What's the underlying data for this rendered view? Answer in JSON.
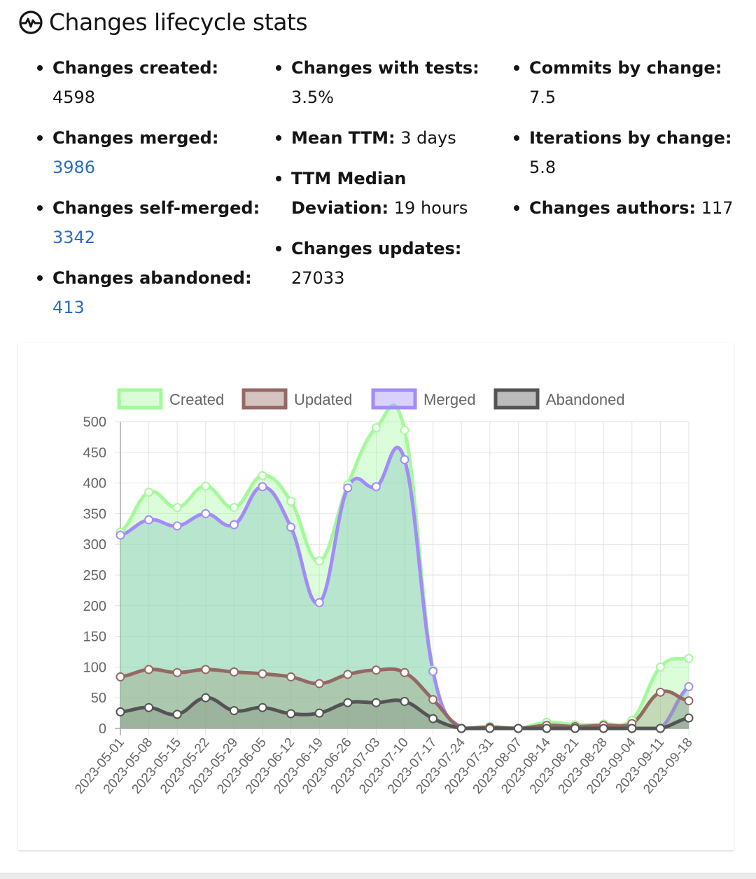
{
  "header": {
    "title": "Changes lifecycle stats",
    "icon": "heartbeat-circle-icon"
  },
  "stats": {
    "col1": [
      {
        "label": "Changes created:",
        "value": "4598",
        "link": false
      },
      {
        "label": "Changes merged:",
        "value": "3986",
        "link": true
      },
      {
        "label": "Changes self-merged:",
        "value": "3342",
        "link": true
      },
      {
        "label": "Changes abandoned:",
        "value": "413",
        "link": true
      }
    ],
    "col2": [
      {
        "label": "Changes with tests:",
        "value": "3.5%"
      },
      {
        "label": "Mean TTM:",
        "value": "3 days"
      },
      {
        "label": "TTM Median Deviation:",
        "label_line1": "TTM Median",
        "label_line2": "Deviation:",
        "value": "19 hours"
      },
      {
        "label": "Changes updates:",
        "value": "27033"
      }
    ],
    "col3": [
      {
        "label": "Commits by change:",
        "value": "7.5"
      },
      {
        "label": "Iterations by change:",
        "value": "5.8"
      },
      {
        "label": "Changes authors:",
        "value": "117"
      }
    ]
  },
  "colors": {
    "link": "#2b6cc4",
    "created": "#a3f99b",
    "updated": "#956864",
    "merged": "#a38bfa",
    "abandoned": "#545454"
  },
  "chart_data": {
    "type": "line",
    "title": "",
    "xlabel": "",
    "ylabel": "",
    "ylim": [
      0,
      500
    ],
    "yticks": [
      0,
      50,
      100,
      150,
      200,
      250,
      300,
      350,
      400,
      450,
      500
    ],
    "grid": true,
    "legend_position": "top",
    "categories": [
      "2023-05-01",
      "2023-05-08",
      "2023-05-15",
      "2023-05-22",
      "2023-05-29",
      "2023-06-05",
      "2023-06-12",
      "2023-06-19",
      "2023-06-26",
      "2023-07-03",
      "2023-07-10",
      "2023-07-17",
      "2023-07-24",
      "2023-07-31",
      "2023-08-07",
      "2023-08-14",
      "2023-08-21",
      "2023-08-28",
      "2023-09-04",
      "2023-09-11",
      "2023-09-18"
    ],
    "series": [
      {
        "name": "Created",
        "color": "#a3f99b",
        "fill": "rgba(163,249,155,0.4)",
        "values": [
          320,
          385,
          360,
          395,
          360,
          412,
          370,
          273,
          397,
          490,
          486,
          95,
          0,
          3,
          0,
          10,
          6,
          7,
          13,
          100,
          114
        ]
      },
      {
        "name": "Updated",
        "color": "#956864",
        "fill": "rgba(149,104,100,0.4)",
        "values": [
          84,
          96,
          91,
          96,
          92,
          89,
          84,
          73,
          88,
          95,
          91,
          47,
          0,
          2,
          0,
          5,
          3,
          5,
          8,
          59,
          45
        ]
      },
      {
        "name": "Merged",
        "color": "#a38bfa",
        "fill": "rgba(163,139,250,0.4)",
        "values": [
          315,
          340,
          330,
          350,
          332,
          394,
          328,
          205,
          392,
          394,
          438,
          93,
          0,
          0,
          0,
          0,
          0,
          0,
          0,
          0,
          68
        ]
      },
      {
        "name": "Abandoned",
        "color": "#545454",
        "fill": "rgba(84,84,84,0.4)",
        "values": [
          27,
          34,
          23,
          50,
          29,
          34,
          24,
          25,
          42,
          42,
          44,
          16,
          0,
          0,
          0,
          0,
          0,
          0,
          0,
          0,
          17
        ]
      }
    ]
  }
}
